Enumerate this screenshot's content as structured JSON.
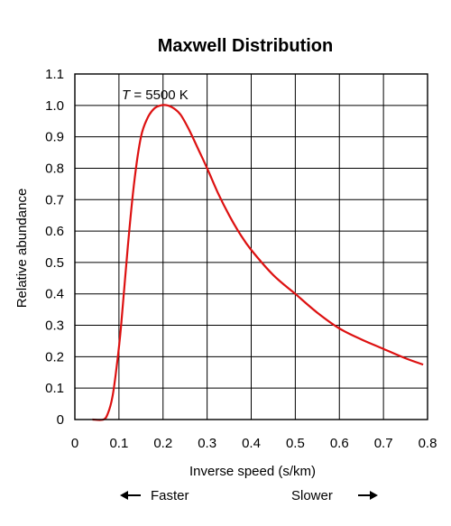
{
  "chart_data": {
    "type": "line",
    "title": "Maxwell Distribution",
    "xlabel": "Inverse speed (s/km)",
    "ylabel": "Relative abundance",
    "xlim": [
      0,
      0.8
    ],
    "ylim": [
      0,
      1.1
    ],
    "x_ticks": [
      "0",
      "0.1",
      "0.2",
      "0.3",
      "0.4",
      "0.5",
      "0.6",
      "0.7",
      "0.8"
    ],
    "y_ticks": [
      "0",
      "0.1",
      "0.2",
      "0.3",
      "0.4",
      "0.5",
      "0.6",
      "0.7",
      "0.8",
      "0.9",
      "1.0",
      "1.1"
    ],
    "grid": true,
    "line_color": "#dd1111",
    "annotation": {
      "italic": "T",
      "rest": " = 5500 K"
    },
    "direction_labels": {
      "left": "Faster",
      "right": "Slower"
    },
    "series": [
      {
        "x": [
          0.04,
          0.065,
          0.075,
          0.085,
          0.095,
          0.105,
          0.12,
          0.135,
          0.15,
          0.165,
          0.18,
          0.195,
          0.21,
          0.225,
          0.24,
          0.26,
          0.28,
          0.3,
          0.325,
          0.35,
          0.375,
          0.4,
          0.45,
          0.5,
          0.55,
          0.6,
          0.65,
          0.7,
          0.75,
          0.79
        ],
        "y": [
          0.0,
          0.0,
          0.02,
          0.07,
          0.17,
          0.3,
          0.55,
          0.76,
          0.9,
          0.96,
          0.99,
          1.0,
          1.0,
          0.99,
          0.97,
          0.92,
          0.86,
          0.8,
          0.72,
          0.65,
          0.59,
          0.54,
          0.46,
          0.4,
          0.34,
          0.29,
          0.255,
          0.225,
          0.195,
          0.175
        ]
      }
    ]
  }
}
